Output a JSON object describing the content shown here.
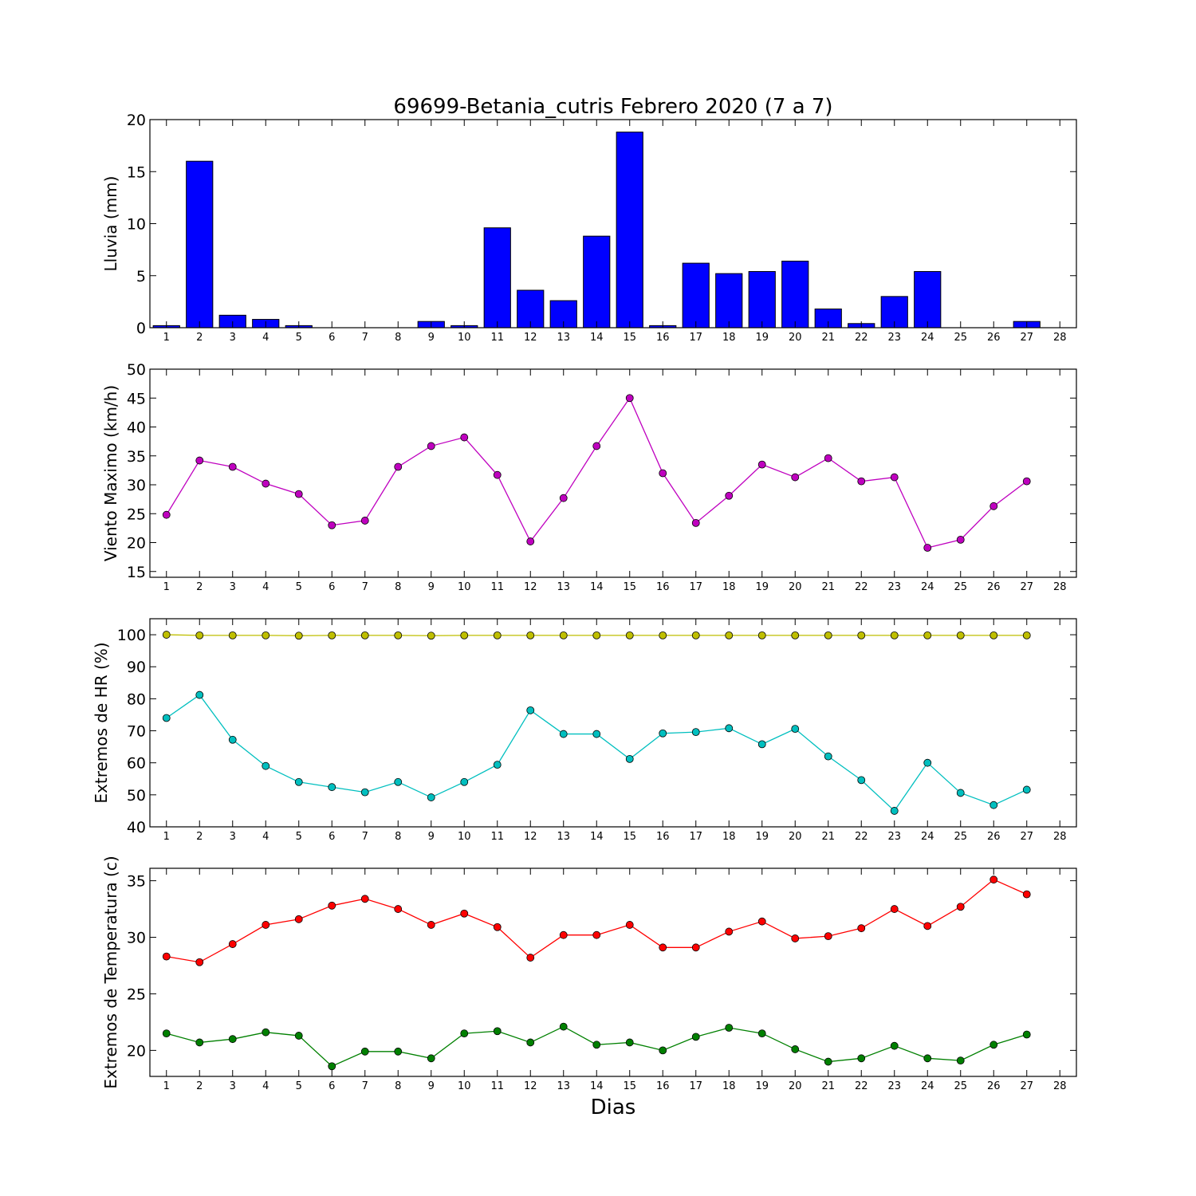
{
  "chart_data": {
    "title": "69699-Betania_cutris Febrero 2020  (7 a 7)",
    "xlabel": "Dias",
    "x_ticks": [
      1,
      2,
      3,
      4,
      5,
      6,
      7,
      8,
      9,
      10,
      11,
      12,
      13,
      14,
      15,
      16,
      17,
      18,
      19,
      20,
      21,
      22,
      23,
      24,
      25,
      26,
      27,
      28
    ],
    "xlim": [
      0.5,
      28.5
    ],
    "panels": [
      {
        "id": "rain",
        "type": "bar",
        "ylabel": "Lluvia (mm)",
        "ylim": [
          0,
          20
        ],
        "yticks": [
          0,
          5,
          10,
          15,
          20
        ],
        "series": [
          {
            "color": "#0000ff",
            "x": [
              1,
              2,
              3,
              4,
              5,
              6,
              7,
              8,
              9,
              10,
              11,
              12,
              13,
              14,
              15,
              16,
              17,
              18,
              19,
              20,
              21,
              22,
              23,
              24,
              25,
              26,
              27
            ],
            "values": [
              0.2,
              16.0,
              1.2,
              0.8,
              0.2,
              0,
              0,
              0,
              0.6,
              0.2,
              9.6,
              3.6,
              2.6,
              8.8,
              18.8,
              0.2,
              6.2,
              5.2,
              5.4,
              6.4,
              1.8,
              0.4,
              3.0,
              5.4,
              0,
              0,
              0.6
            ]
          }
        ]
      },
      {
        "id": "wind",
        "type": "line",
        "ylabel": "Viento Maximo (km/h)",
        "ylim": [
          14,
          50
        ],
        "yticks": [
          15,
          20,
          25,
          30,
          35,
          40,
          45,
          50
        ],
        "series": [
          {
            "color": "#bf00bf",
            "x": [
              1,
              2,
              3,
              4,
              5,
              6,
              7,
              8,
              9,
              10,
              11,
              12,
              13,
              14,
              15,
              16,
              17,
              18,
              19,
              20,
              21,
              22,
              23,
              24,
              25,
              26,
              27
            ],
            "values": [
              24.8,
              34.2,
              33.1,
              30.2,
              28.4,
              23.0,
              23.8,
              33.1,
              36.7,
              38.2,
              31.7,
              20.2,
              27.7,
              36.7,
              45.0,
              32.0,
              23.4,
              28.1,
              33.5,
              31.3,
              34.6,
              30.6,
              31.3,
              19.1,
              20.5,
              26.3,
              30.6
            ]
          }
        ]
      },
      {
        "id": "humidity",
        "type": "line",
        "ylabel": "Extremos de HR (%)",
        "ylim": [
          40,
          105
        ],
        "yticks": [
          40,
          50,
          60,
          70,
          80,
          90,
          100
        ],
        "series": [
          {
            "color": "#bfbf00",
            "x": [
              1,
              2,
              3,
              4,
              5,
              6,
              7,
              8,
              9,
              10,
              11,
              12,
              13,
              14,
              15,
              16,
              17,
              18,
              19,
              20,
              21,
              22,
              23,
              24,
              25,
              26,
              27
            ],
            "values": [
              100,
              99.8,
              99.8,
              99.8,
              99.7,
              99.8,
              99.8,
              99.8,
              99.7,
              99.8,
              99.8,
              99.8,
              99.8,
              99.8,
              99.8,
              99.8,
              99.8,
              99.8,
              99.8,
              99.8,
              99.8,
              99.8,
              99.8,
              99.8,
              99.8,
              99.8,
              99.8
            ]
          },
          {
            "color": "#00bfbf",
            "x": [
              1,
              2,
              3,
              4,
              5,
              6,
              7,
              8,
              9,
              10,
              11,
              12,
              13,
              14,
              15,
              16,
              17,
              18,
              19,
              20,
              21,
              22,
              23,
              24,
              25,
              26,
              27
            ],
            "values": [
              74.0,
              81.2,
              67.2,
              59.0,
              54.0,
              52.4,
              50.8,
              54.0,
              49.2,
              54.0,
              59.4,
              76.4,
              69.0,
              69.0,
              61.2,
              69.2,
              69.6,
              70.8,
              65.8,
              70.6,
              62.0,
              54.6,
              45.0,
              60.0,
              50.6,
              46.8,
              51.6
            ]
          }
        ]
      },
      {
        "id": "temperature",
        "type": "line",
        "ylabel": "Extremos de Temperatura (c)",
        "ylim": [
          17.7,
          36.1
        ],
        "yticks": [
          20,
          25,
          30,
          35
        ],
        "series": [
          {
            "color": "#ff0000",
            "x": [
              1,
              2,
              3,
              4,
              5,
              6,
              7,
              8,
              9,
              10,
              11,
              12,
              13,
              14,
              15,
              16,
              17,
              18,
              19,
              20,
              21,
              22,
              23,
              24,
              25,
              26,
              27
            ],
            "values": [
              28.3,
              27.8,
              29.4,
              31.1,
              31.6,
              32.8,
              33.4,
              32.5,
              31.1,
              32.1,
              30.9,
              28.2,
              30.2,
              30.2,
              31.1,
              29.1,
              29.1,
              30.5,
              31.4,
              29.9,
              30.1,
              30.8,
              32.5,
              31.0,
              32.7,
              35.1,
              33.8
            ]
          },
          {
            "color": "#008000",
            "x": [
              1,
              2,
              3,
              4,
              5,
              6,
              7,
              8,
              9,
              10,
              11,
              12,
              13,
              14,
              15,
              16,
              17,
              18,
              19,
              20,
              21,
              22,
              23,
              24,
              25,
              26,
              27
            ],
            "values": [
              21.5,
              20.7,
              21.0,
              21.6,
              21.3,
              18.6,
              19.9,
              19.9,
              19.3,
              21.5,
              21.7,
              20.7,
              22.1,
              20.5,
              20.7,
              20.0,
              21.2,
              22.0,
              21.5,
              20.1,
              19.0,
              19.3,
              20.4,
              19.3,
              19.1,
              20.5,
              21.4
            ]
          }
        ]
      }
    ]
  }
}
